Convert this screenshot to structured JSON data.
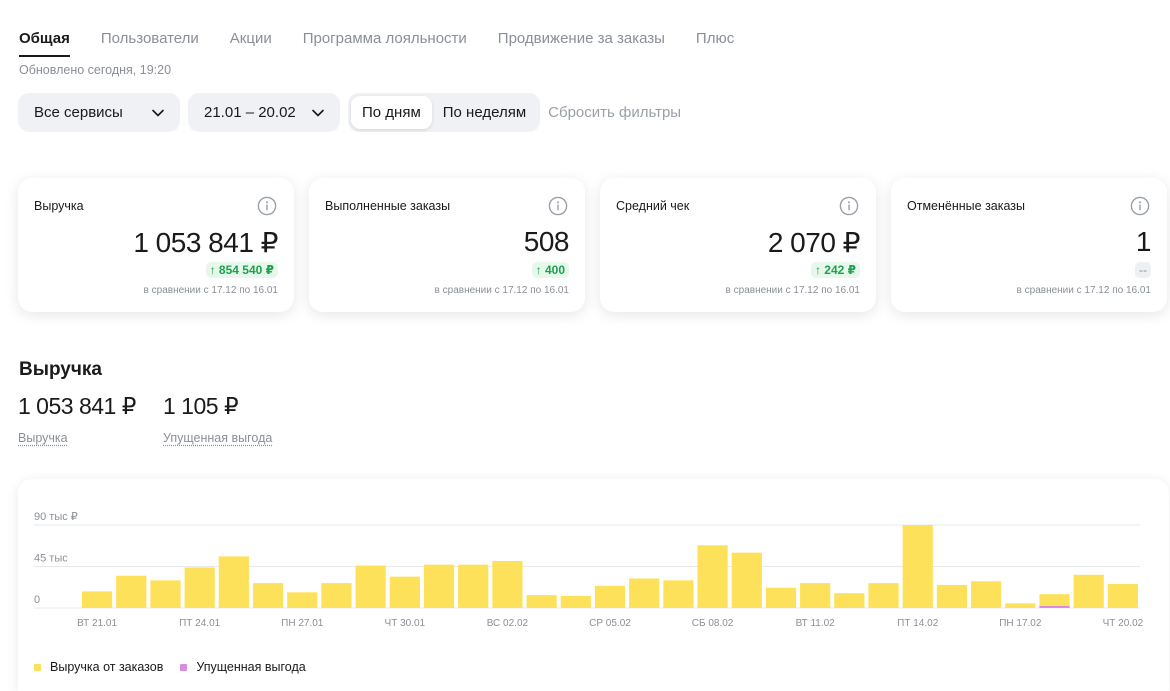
{
  "tabs": [
    {
      "label": "Общая",
      "active": true
    },
    {
      "label": "Пользователи",
      "active": false
    },
    {
      "label": "Акции",
      "active": false
    },
    {
      "label": "Программа лояльности",
      "active": false
    },
    {
      "label": "Продвижение за заказы",
      "active": false
    },
    {
      "label": "Плюс",
      "active": false
    }
  ],
  "updated_text": "Обновлено сегодня, 19:20",
  "filters": {
    "services": "Все сервисы",
    "date_range": "21.01 – 20.02",
    "by_days": "По дням",
    "by_weeks": "По неделям",
    "selected_granularity": "По дням",
    "reset": "Сбросить фильтры"
  },
  "cards": [
    {
      "title": "Выручка",
      "value": "1 053 841 ₽",
      "delta": "↑ 854 540 ₽",
      "delta_type": "positive",
      "compare": "в сравнении с 17.12 по 16.01"
    },
    {
      "title": "Выполненные заказы",
      "value": "508",
      "delta": "↑ 400",
      "delta_type": "positive",
      "compare": "в сравнении с 17.12 по 16.01"
    },
    {
      "title": "Средний чек",
      "value": "2 070 ₽",
      "delta": "↑ 242 ₽",
      "delta_type": "positive",
      "compare": "в сравнении с 17.12 по 16.01"
    },
    {
      "title": "Отменённые заказы",
      "value": "1",
      "delta": "--",
      "delta_type": "neutral",
      "compare": "в сравнении с 17.12 по 16.01"
    }
  ],
  "revenue": {
    "title": "Выручка",
    "metrics": [
      {
        "value": "1 053 841 ₽",
        "label": "Выручка"
      },
      {
        "value": "1 105 ₽",
        "label": "Упущенная выгода"
      }
    ]
  },
  "colors": {
    "bar": "#fde15a",
    "lost": "#d98be0",
    "grid": "#e6e8eb",
    "axis_text": "#8a8f98",
    "positive": "#19a44c"
  },
  "chart_data": {
    "type": "bar",
    "y_tick_labels": [
      "90 тыс ₽",
      "45 тыс",
      "0"
    ],
    "y_ticks": [
      90000,
      45000,
      0
    ],
    "ylim": [
      0,
      90000
    ],
    "x_tick_labels": [
      "ВТ 21.01",
      "ПТ 24.01",
      "ПН 27.01",
      "ЧТ 30.01",
      "ВС 02.02",
      "СР 05.02",
      "СБ 08.02",
      "ВТ 11.02",
      "ПТ 14.02",
      "ПН 17.02",
      "ЧТ 20.02"
    ],
    "x_tick_every": 3,
    "categories": [
      "21.01",
      "22.01",
      "23.01",
      "24.01",
      "25.01",
      "26.01",
      "27.01",
      "28.01",
      "29.01",
      "30.01",
      "31.01",
      "01.02",
      "02.02",
      "03.02",
      "04.02",
      "05.02",
      "06.02",
      "07.02",
      "08.02",
      "09.02",
      "10.02",
      "11.02",
      "12.02",
      "13.02",
      "14.02",
      "15.02",
      "16.02",
      "17.02",
      "18.02",
      "19.02",
      "20.02"
    ],
    "series": [
      {
        "name": "Выручка от заказов",
        "values": [
          18000,
          35000,
          30000,
          44000,
          56000,
          27000,
          17000,
          27000,
          46000,
          34000,
          47000,
          47000,
          51000,
          14000,
          13000,
          24000,
          32000,
          30000,
          68000,
          60000,
          22000,
          27000,
          16000,
          27000,
          90000,
          25000,
          29000,
          5000,
          15000,
          36000,
          26000
        ]
      },
      {
        "name": "Упущенная выгода",
        "values": [
          0,
          0,
          0,
          0,
          0,
          0,
          0,
          0,
          0,
          0,
          0,
          0,
          0,
          0,
          0,
          0,
          0,
          0,
          0,
          0,
          0,
          0,
          0,
          0,
          0,
          0,
          0,
          0,
          1105,
          0,
          0
        ]
      }
    ],
    "legend": [
      "Выручка от заказов",
      "Упущенная выгода"
    ],
    "legend_position": "bottom-left",
    "grid": true
  }
}
